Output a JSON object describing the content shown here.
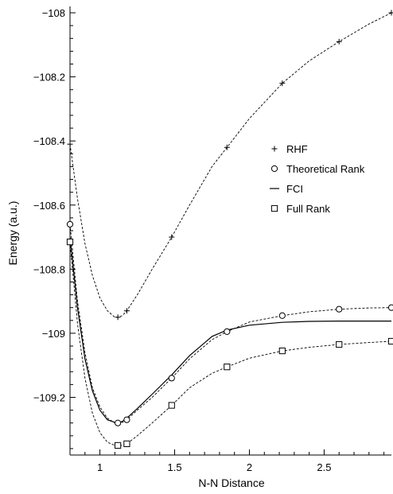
{
  "chart_data": {
    "type": "line",
    "xlabel": "N-N Distance",
    "ylabel": "Energy (a.u.)",
    "xlim": [
      0.8,
      2.95
    ],
    "ylim": [
      -109.38,
      -107.98
    ],
    "xticks": [
      1,
      1.5,
      2,
      2.5
    ],
    "xtick_labels": [
      "1",
      "1.5",
      "2",
      "2.5"
    ],
    "yticks": [
      -108,
      -108.2,
      -108.4,
      -108.6,
      -108.8,
      -109,
      -109.2
    ],
    "ytick_labels": [
      "−108",
      "−108.2",
      "−108.4",
      "−108.6",
      "−108.8",
      "−109",
      "−109.2"
    ],
    "grid": false,
    "legend_position": "right",
    "series": [
      {
        "name": "RHF",
        "marker": "+",
        "line_style": "dashed",
        "x": [
          0.8,
          1.12,
          1.18,
          1.48,
          1.85,
          2.22,
          2.6,
          2.95
        ],
        "y": [
          -108.41,
          -108.95,
          -108.93,
          -108.7,
          -108.42,
          -108.22,
          -108.09,
          -108.0
        ],
        "curve_x": [
          0.8,
          0.85,
          0.9,
          0.95,
          1.0,
          1.05,
          1.1,
          1.12,
          1.15,
          1.18,
          1.25,
          1.35,
          1.48,
          1.6,
          1.75,
          1.85,
          2.0,
          2.22,
          2.4,
          2.6,
          2.8,
          2.95
        ],
        "curve_y": [
          -108.41,
          -108.58,
          -108.72,
          -108.82,
          -108.89,
          -108.93,
          -108.95,
          -108.95,
          -108.945,
          -108.93,
          -108.88,
          -108.8,
          -108.7,
          -108.6,
          -108.48,
          -108.42,
          -108.33,
          -108.22,
          -108.15,
          -108.09,
          -108.035,
          -108.0
        ]
      },
      {
        "name": "Theoretical Rank",
        "marker": "circle",
        "line_style": "dashed",
        "x": [
          0.8,
          1.12,
          1.18,
          1.48,
          1.85,
          2.22,
          2.6,
          2.95
        ],
        "y": [
          -108.66,
          -109.28,
          -109.27,
          -109.14,
          -108.995,
          -108.945,
          -108.925,
          -108.92
        ],
        "curve_x": [
          0.8,
          0.85,
          0.9,
          0.95,
          1.0,
          1.05,
          1.1,
          1.12,
          1.15,
          1.18,
          1.25,
          1.35,
          1.48,
          1.6,
          1.75,
          1.85,
          2.0,
          2.22,
          2.4,
          2.6,
          2.8,
          2.95
        ],
        "curve_y": [
          -108.66,
          -108.9,
          -109.06,
          -109.17,
          -109.23,
          -109.265,
          -109.28,
          -109.28,
          -109.278,
          -109.27,
          -109.24,
          -109.2,
          -109.14,
          -109.08,
          -109.02,
          -108.995,
          -108.965,
          -108.945,
          -108.933,
          -108.925,
          -108.921,
          -108.92
        ]
      },
      {
        "name": "FCI",
        "marker": "none",
        "line_style": "solid",
        "x": [
          0.8,
          0.85,
          0.9,
          0.95,
          1.0,
          1.05,
          1.1,
          1.12,
          1.15,
          1.18,
          1.25,
          1.35,
          1.48,
          1.6,
          1.75,
          1.85,
          2.0,
          2.22,
          2.4,
          2.6,
          2.8,
          2.95
        ],
        "y": [
          -108.7,
          -108.92,
          -109.08,
          -109.18,
          -109.24,
          -109.27,
          -109.278,
          -109.28,
          -109.275,
          -109.265,
          -109.235,
          -109.19,
          -109.13,
          -109.07,
          -109.01,
          -108.99,
          -108.975,
          -108.966,
          -108.963,
          -108.962,
          -108.962,
          -108.962
        ]
      },
      {
        "name": "Full Rank",
        "marker": "square",
        "line_style": "dashed",
        "x": [
          0.8,
          1.12,
          1.18,
          1.48,
          1.85,
          2.22,
          2.6,
          2.95
        ],
        "y": [
          -108.715,
          -109.35,
          -109.345,
          -109.225,
          -109.105,
          -109.055,
          -109.035,
          -109.025
        ],
        "curve_x": [
          0.8,
          0.85,
          0.9,
          0.95,
          1.0,
          1.05,
          1.1,
          1.12,
          1.15,
          1.18,
          1.25,
          1.35,
          1.48,
          1.6,
          1.75,
          1.85,
          2.0,
          2.22,
          2.4,
          2.6,
          2.8,
          2.95
        ],
        "curve_y": [
          -108.715,
          -108.97,
          -109.14,
          -109.25,
          -109.31,
          -109.34,
          -109.35,
          -109.35,
          -109.35,
          -109.345,
          -109.32,
          -109.28,
          -109.225,
          -109.17,
          -109.125,
          -109.105,
          -109.078,
          -109.055,
          -109.044,
          -109.035,
          -109.029,
          -109.025
        ]
      }
    ]
  }
}
